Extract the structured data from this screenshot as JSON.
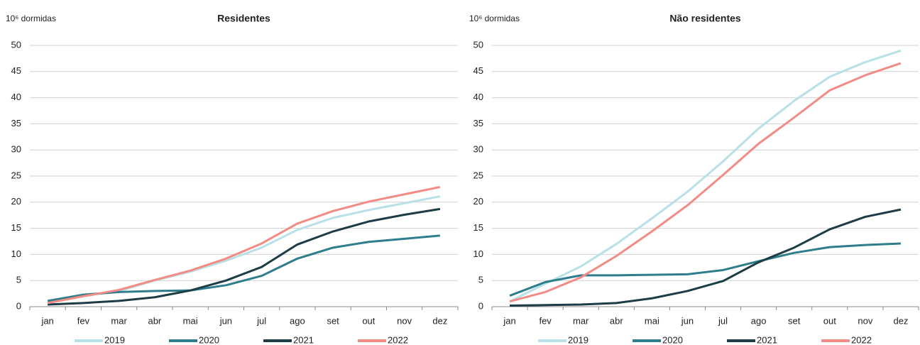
{
  "chart_data": [
    {
      "type": "line",
      "title": "Residentes",
      "y_label": "10⁶ dormidas",
      "categories": [
        "jan",
        "fev",
        "mar",
        "abr",
        "mai",
        "jun",
        "jul",
        "ago",
        "set",
        "out",
        "nov",
        "dez"
      ],
      "ylim": [
        0,
        50
      ],
      "yticks": [
        0,
        5,
        10,
        15,
        20,
        25,
        30,
        35,
        40,
        45,
        50
      ],
      "grid": true,
      "legend": "bottom",
      "series": [
        {
          "name": "2019",
          "color": "#b7e0e7",
          "values": [
            0.8,
            2.0,
            3.0,
            5.0,
            6.7,
            8.8,
            11.3,
            14.7,
            17.0,
            18.5,
            19.8,
            21.1
          ]
        },
        {
          "name": "2020",
          "color": "#2e7d8c",
          "values": [
            1.1,
            2.3,
            2.8,
            3.0,
            3.1,
            4.1,
            5.9,
            9.2,
            11.3,
            12.4,
            13.0,
            13.6
          ]
        },
        {
          "name": "2021",
          "color": "#1c3c46",
          "values": [
            0.4,
            0.7,
            1.1,
            1.8,
            3.1,
            5.0,
            7.6,
            11.9,
            14.4,
            16.3,
            17.6,
            18.7
          ]
        },
        {
          "name": "2022",
          "color": "#f28b84",
          "values": [
            0.7,
            2.0,
            3.2,
            5.1,
            6.9,
            9.2,
            12.1,
            15.9,
            18.3,
            20.1,
            21.5,
            22.9
          ]
        }
      ]
    },
    {
      "type": "line",
      "title": "Não residentes",
      "y_label": "10⁶ dormidas",
      "categories": [
        "jan",
        "fev",
        "mar",
        "abr",
        "mai",
        "jun",
        "jul",
        "ago",
        "set",
        "out",
        "nov",
        "dez"
      ],
      "ylim": [
        0,
        50
      ],
      "yticks": [
        0,
        5,
        10,
        15,
        20,
        25,
        30,
        35,
        40,
        45,
        50
      ],
      "grid": true,
      "legend": "bottom",
      "series": [
        {
          "name": "2019",
          "color": "#b7e0e7",
          "values": [
            1.0,
            4.4,
            7.7,
            12.0,
            16.9,
            22.0,
            27.8,
            34.1,
            39.4,
            44.0,
            46.8,
            49.0
          ]
        },
        {
          "name": "2020",
          "color": "#2e7d8c",
          "values": [
            2.1,
            4.7,
            6.0,
            6.0,
            6.1,
            6.2,
            7.0,
            8.7,
            10.3,
            11.4,
            11.8,
            12.1
          ]
        },
        {
          "name": "2021",
          "color": "#1c3c46",
          "values": [
            0.2,
            0.3,
            0.4,
            0.7,
            1.6,
            3.0,
            4.9,
            8.5,
            11.3,
            14.8,
            17.2,
            18.6
          ]
        },
        {
          "name": "2022",
          "color": "#f28b84",
          "values": [
            1.0,
            2.8,
            5.6,
            9.7,
            14.4,
            19.4,
            25.2,
            31.2,
            36.2,
            41.4,
            44.3,
            46.6
          ]
        }
      ]
    }
  ]
}
